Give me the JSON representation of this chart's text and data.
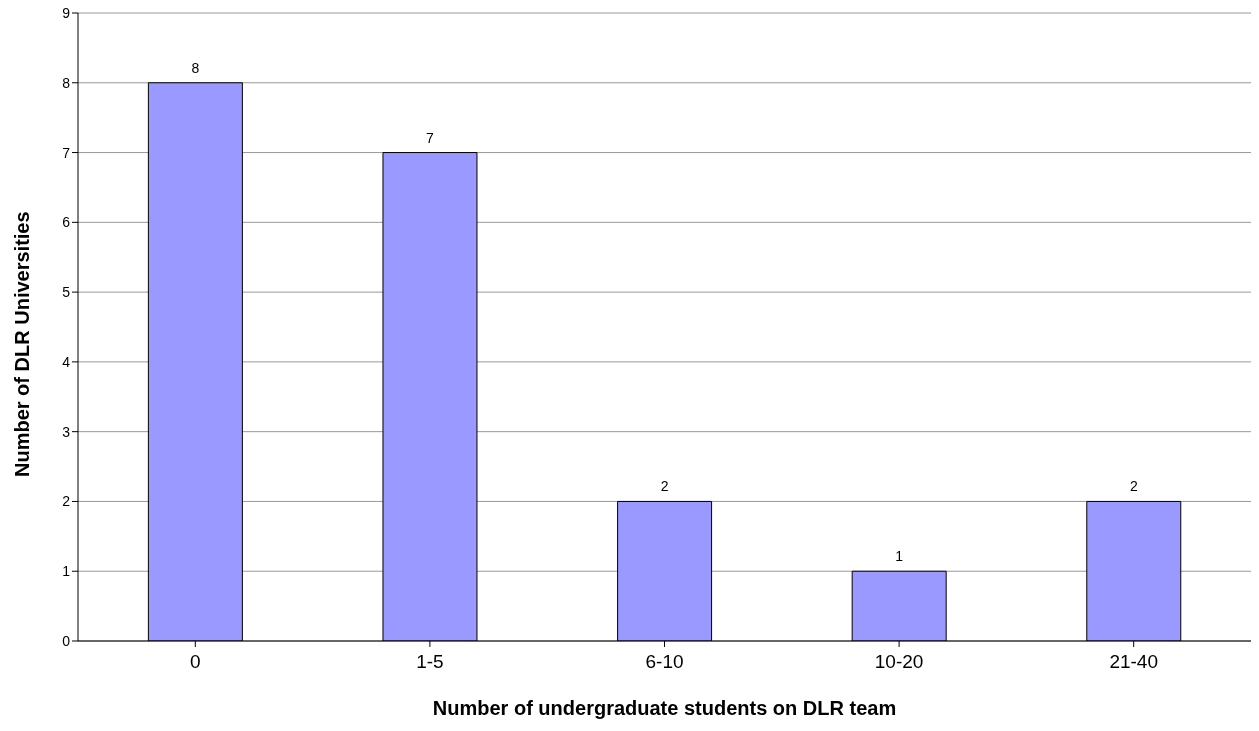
{
  "chart_data": {
    "type": "bar",
    "xlabel": "Number of undergraduate students on DLR team",
    "ylabel": "Number of DLR Universities",
    "categories": [
      "0",
      "1-5",
      "6-10",
      "10-20",
      "21-40"
    ],
    "values": [
      8,
      7,
      2,
      1,
      2
    ],
    "color": "#9999ff",
    "ylim": [
      0,
      9
    ],
    "yticks": [
      0,
      1,
      2,
      3,
      4,
      5,
      6,
      7,
      8,
      9
    ],
    "grid": "y",
    "data_labels": true
  }
}
